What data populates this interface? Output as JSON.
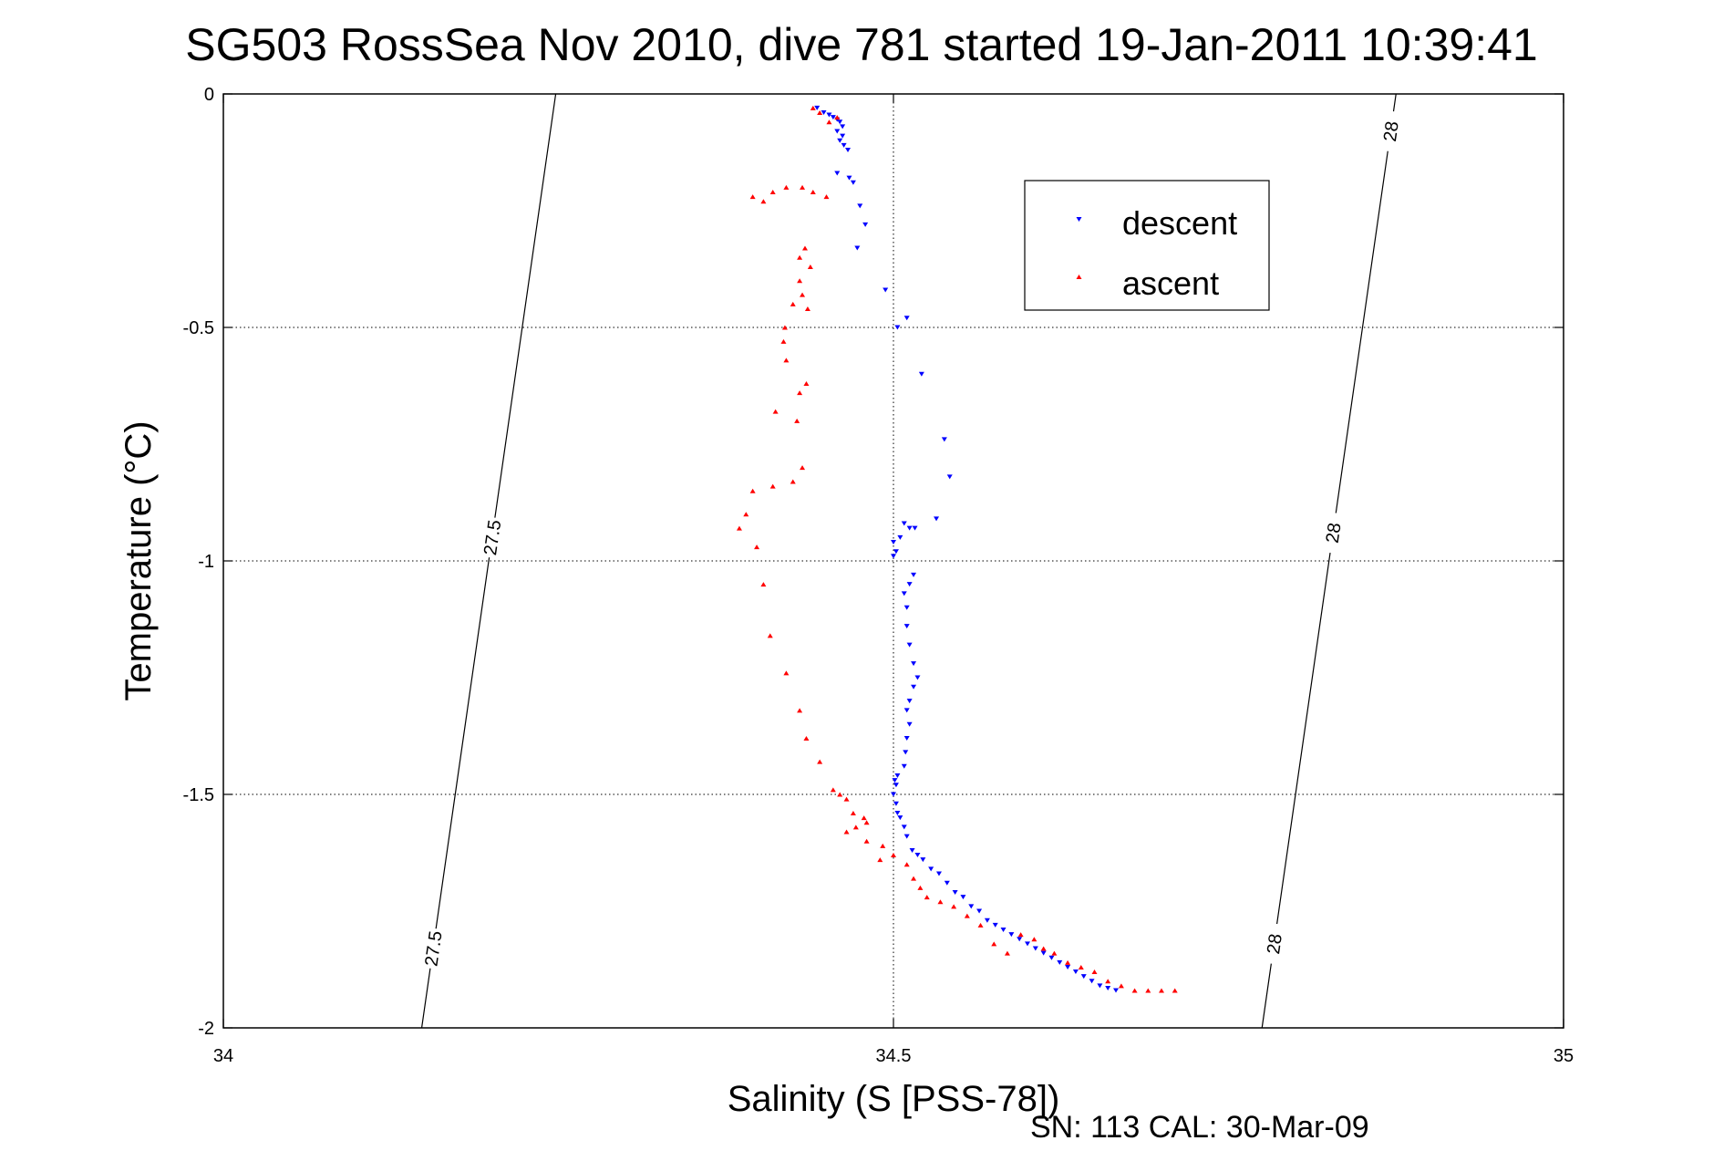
{
  "chart_data": {
    "type": "scatter",
    "title": "SG503 RossSea Nov 2010, dive 781 started 19-Jan-2011 10:39:41",
    "xlabel": "Salinity (S [PSS-78])",
    "ylabel": "Temperature (°C)",
    "xlim": [
      34,
      35
    ],
    "ylim": [
      -2,
      0
    ],
    "xticks": [
      34,
      34.5,
      35
    ],
    "xtick_labels": [
      "34",
      "34.5",
      "35"
    ],
    "yticks": [
      0,
      -0.5,
      -1,
      -1.5,
      -2
    ],
    "ytick_labels": [
      "0",
      "-0.5",
      "-1",
      "-1.5",
      "-2"
    ],
    "grid": true,
    "legend_position": "top-right",
    "footnote": "SN: 113  CAL: 30-Mar-09",
    "series": [
      {
        "name": "descent",
        "color": "#0000ff",
        "marker": "triangle-down",
        "points": [
          [
            34.443,
            -0.03
          ],
          [
            34.448,
            -0.04
          ],
          [
            34.452,
            -0.045
          ],
          [
            34.455,
            -0.05
          ],
          [
            34.458,
            -0.055
          ],
          [
            34.46,
            -0.06
          ],
          [
            34.462,
            -0.07
          ],
          [
            34.458,
            -0.08
          ],
          [
            34.462,
            -0.09
          ],
          [
            34.46,
            -0.1
          ],
          [
            34.463,
            -0.11
          ],
          [
            34.466,
            -0.12
          ],
          [
            34.458,
            -0.17
          ],
          [
            34.467,
            -0.18
          ],
          [
            34.47,
            -0.19
          ],
          [
            34.475,
            -0.24
          ],
          [
            34.479,
            -0.28
          ],
          [
            34.473,
            -0.33
          ],
          [
            34.494,
            -0.42
          ],
          [
            34.51,
            -0.48
          ],
          [
            34.503,
            -0.5
          ],
          [
            34.521,
            -0.6
          ],
          [
            34.538,
            -0.74
          ],
          [
            34.542,
            -0.82
          ],
          [
            34.532,
            -0.91
          ],
          [
            34.508,
            -0.92
          ],
          [
            34.512,
            -0.93
          ],
          [
            34.516,
            -0.93
          ],
          [
            34.505,
            -0.95
          ],
          [
            34.5,
            -0.96
          ],
          [
            34.502,
            -0.98
          ],
          [
            34.5,
            -0.99
          ],
          [
            34.515,
            -1.03
          ],
          [
            34.512,
            -1.05
          ],
          [
            34.508,
            -1.07
          ],
          [
            34.51,
            -1.1
          ],
          [
            34.51,
            -1.14
          ],
          [
            34.512,
            -1.18
          ],
          [
            34.515,
            -1.22
          ],
          [
            34.518,
            -1.25
          ],
          [
            34.515,
            -1.27
          ],
          [
            34.512,
            -1.3
          ],
          [
            34.51,
            -1.32
          ],
          [
            34.512,
            -1.35
          ],
          [
            34.51,
            -1.38
          ],
          [
            34.509,
            -1.41
          ],
          [
            34.508,
            -1.44
          ],
          [
            34.503,
            -1.46
          ],
          [
            34.501,
            -1.47
          ],
          [
            34.502,
            -1.48
          ],
          [
            34.5,
            -1.5
          ],
          [
            34.502,
            -1.52
          ],
          [
            34.503,
            -1.54
          ],
          [
            34.505,
            -1.55
          ],
          [
            34.508,
            -1.57
          ],
          [
            34.51,
            -1.59
          ],
          [
            34.514,
            -1.62
          ],
          [
            34.518,
            -1.63
          ],
          [
            34.522,
            -1.64
          ],
          [
            34.528,
            -1.66
          ],
          [
            34.534,
            -1.67
          ],
          [
            34.54,
            -1.69
          ],
          [
            34.546,
            -1.71
          ],
          [
            34.552,
            -1.72
          ],
          [
            34.558,
            -1.74
          ],
          [
            34.564,
            -1.75
          ],
          [
            34.57,
            -1.77
          ],
          [
            34.576,
            -1.78
          ],
          [
            34.582,
            -1.79
          ],
          [
            34.588,
            -1.8
          ],
          [
            34.594,
            -1.81
          ],
          [
            34.6,
            -1.82
          ],
          [
            34.606,
            -1.83
          ],
          [
            34.612,
            -1.84
          ],
          [
            34.618,
            -1.85
          ],
          [
            34.624,
            -1.86
          ],
          [
            34.63,
            -1.87
          ],
          [
            34.636,
            -1.88
          ],
          [
            34.642,
            -1.89
          ],
          [
            34.648,
            -1.9
          ],
          [
            34.654,
            -1.91
          ],
          [
            34.66,
            -1.915
          ],
          [
            34.666,
            -1.92
          ]
        ]
      },
      {
        "name": "ascent",
        "color": "#ff0000",
        "marker": "triangle-up",
        "points": [
          [
            34.458,
            -0.05
          ],
          [
            34.452,
            -0.06
          ],
          [
            34.445,
            -0.04
          ],
          [
            34.44,
            -0.03
          ],
          [
            34.395,
            -0.22
          ],
          [
            34.41,
            -0.21
          ],
          [
            34.42,
            -0.2
          ],
          [
            34.432,
            -0.2
          ],
          [
            34.44,
            -0.21
          ],
          [
            34.45,
            -0.22
          ],
          [
            34.403,
            -0.23
          ],
          [
            34.434,
            -0.33
          ],
          [
            34.43,
            -0.35
          ],
          [
            34.438,
            -0.37
          ],
          [
            34.43,
            -0.4
          ],
          [
            34.432,
            -0.43
          ],
          [
            34.425,
            -0.45
          ],
          [
            34.436,
            -0.46
          ],
          [
            34.419,
            -0.5
          ],
          [
            34.418,
            -0.53
          ],
          [
            34.42,
            -0.57
          ],
          [
            34.435,
            -0.62
          ],
          [
            34.43,
            -0.64
          ],
          [
            34.412,
            -0.68
          ],
          [
            34.428,
            -0.7
          ],
          [
            34.432,
            -0.8
          ],
          [
            34.425,
            -0.83
          ],
          [
            34.41,
            -0.84
          ],
          [
            34.395,
            -0.85
          ],
          [
            34.39,
            -0.9
          ],
          [
            34.385,
            -0.93
          ],
          [
            34.398,
            -0.97
          ],
          [
            34.403,
            -1.05
          ],
          [
            34.408,
            -1.16
          ],
          [
            34.42,
            -1.24
          ],
          [
            34.43,
            -1.32
          ],
          [
            34.435,
            -1.38
          ],
          [
            34.445,
            -1.43
          ],
          [
            34.455,
            -1.49
          ],
          [
            34.46,
            -1.5
          ],
          [
            34.465,
            -1.51
          ],
          [
            34.47,
            -1.54
          ],
          [
            34.478,
            -1.55
          ],
          [
            34.48,
            -1.56
          ],
          [
            34.472,
            -1.57
          ],
          [
            34.465,
            -1.58
          ],
          [
            34.48,
            -1.6
          ],
          [
            34.492,
            -1.61
          ],
          [
            34.5,
            -1.63
          ],
          [
            34.49,
            -1.64
          ],
          [
            34.51,
            -1.65
          ],
          [
            34.515,
            -1.68
          ],
          [
            34.52,
            -1.7
          ],
          [
            34.525,
            -1.72
          ],
          [
            34.535,
            -1.73
          ],
          [
            34.545,
            -1.74
          ],
          [
            34.555,
            -1.76
          ],
          [
            34.565,
            -1.78
          ],
          [
            34.575,
            -1.82
          ],
          [
            34.585,
            -1.84
          ],
          [
            34.595,
            -1.8
          ],
          [
            34.605,
            -1.81
          ],
          [
            34.612,
            -1.83
          ],
          [
            34.62,
            -1.84
          ],
          [
            34.63,
            -1.86
          ],
          [
            34.64,
            -1.87
          ],
          [
            34.65,
            -1.88
          ],
          [
            34.66,
            -1.9
          ],
          [
            34.67,
            -1.91
          ],
          [
            34.68,
            -1.92
          ],
          [
            34.69,
            -1.92
          ],
          [
            34.7,
            -1.92
          ],
          [
            34.71,
            -1.92
          ]
        ]
      }
    ],
    "contours": [
      {
        "label": "27.5",
        "color": "#000000",
        "line": [
          [
            34.148,
            -2
          ],
          [
            34.248,
            0
          ]
        ],
        "labels_at": [
          -0.95,
          -1.83
        ]
      },
      {
        "label": "28",
        "color": "#000000",
        "line": [
          [
            34.775,
            -2
          ],
          [
            34.875,
            0
          ]
        ],
        "labels_at": [
          -0.08,
          -0.94,
          -1.82
        ]
      }
    ]
  }
}
